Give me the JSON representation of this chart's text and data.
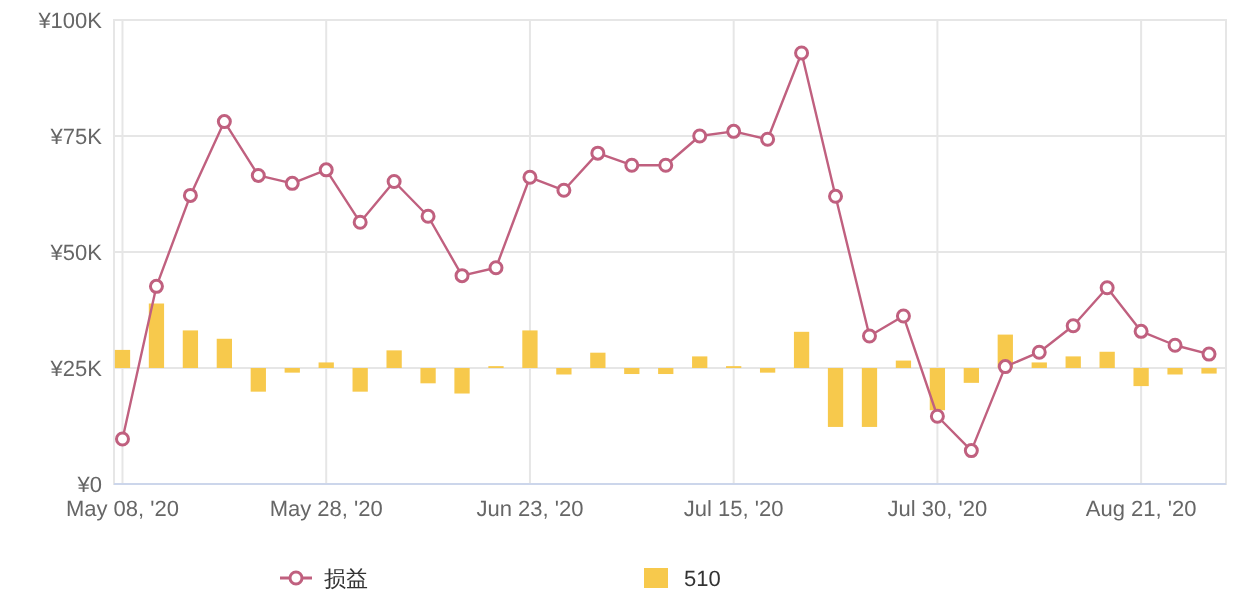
{
  "chart_data": {
    "type": "line",
    "categories": [
      "May 08, '20",
      null,
      null,
      null,
      null,
      null,
      "May 28, '20",
      null,
      null,
      null,
      null,
      null,
      "Jun 23, '20",
      null,
      null,
      null,
      null,
      null,
      "Jul 15, '20",
      null,
      null,
      null,
      null,
      null,
      "Jul 30, '20",
      null,
      null,
      null,
      null,
      null,
      "Aug 21, '20",
      null,
      null
    ],
    "series": [
      {
        "name": "510",
        "type": "bar",
        "color": "#f7c94c",
        "base": [
          25000,
          25000,
          25000,
          25000,
          25000,
          25000,
          25000,
          25000,
          25000,
          25000,
          25000,
          25000,
          25000,
          25000,
          25000,
          25000,
          25000,
          25000,
          25000,
          25000,
          25000,
          25000,
          25000,
          25000,
          25000,
          25000,
          25000,
          25000,
          25000,
          25000,
          25000,
          25000,
          25000
        ],
        "values": [
          3900,
          13900,
          8100,
          6300,
          -5100,
          -1000,
          1200,
          -5100,
          3800,
          -3300,
          -5500,
          400,
          8100,
          -1400,
          3300,
          -1300,
          -1300,
          2500,
          400,
          -1000,
          7800,
          -12700,
          -12700,
          1600,
          -9100,
          -3200,
          7200,
          1200,
          2500,
          3500,
          -3900,
          -1400,
          -1200
        ]
      },
      {
        "name": "损益",
        "color": "#c0607f",
        "marker": "circle",
        "values": [
          9700,
          42600,
          62200,
          78100,
          66500,
          64800,
          67700,
          56400,
          65200,
          57700,
          44900,
          46600,
          66100,
          63300,
          71300,
          68700,
          68700,
          75000,
          76000,
          74300,
          92900,
          62000,
          31900,
          36200,
          14600,
          7200,
          25300,
          28400,
          34100,
          42300,
          32900,
          29900,
          28000
        ]
      }
    ],
    "ylim": [
      0,
      100000
    ],
    "yticks": [
      {
        "value": 0,
        "label": "¥0"
      },
      {
        "value": 25000,
        "label": "¥25K"
      },
      {
        "value": 50000,
        "label": "¥50K"
      },
      {
        "value": 75000,
        "label": "¥75K"
      },
      {
        "value": 100000,
        "label": "¥100K"
      }
    ],
    "grid": true,
    "legend": "bottom"
  }
}
